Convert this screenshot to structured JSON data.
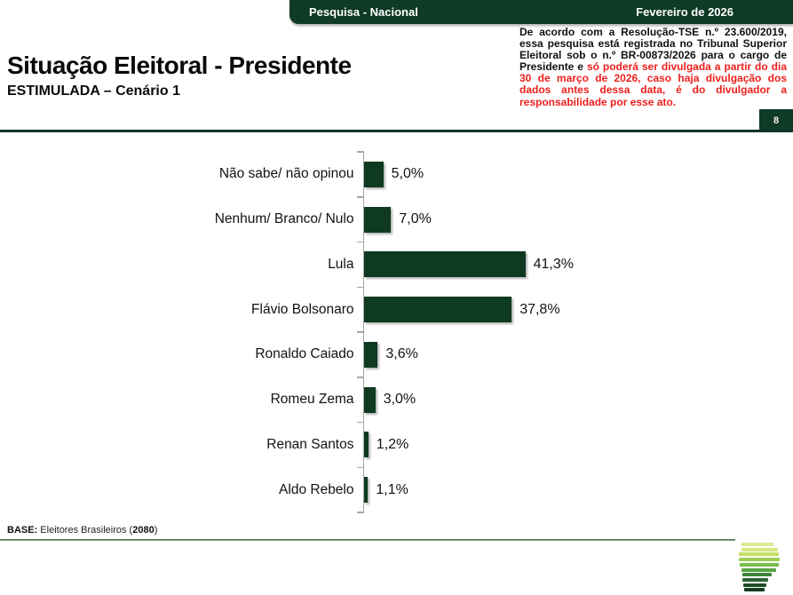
{
  "header": {
    "left_label": "Pesquisa - Nacional",
    "right_label": "Fevereiro de 2026"
  },
  "title": "Situação Eleitoral - Presidente",
  "subtitle": "ESTIMULADA – Cenário 1",
  "disclaimer": {
    "black_text": "De acordo com a Resolução-TSE n.º 23.600/2019, essa pesquisa está registrada no Tribunal Superior Eleitoral sob o n.º BR-00873/2026 para o cargo de Presidente e ",
    "red_text": "só poderá ser divulgada a partir do dia 30 de março de 2026, caso haja divulgação dos dados antes dessa data, é do divulgador a responsabilidade por esse ato."
  },
  "page_number": "8",
  "chart_data": {
    "type": "bar",
    "orientation": "horizontal",
    "title": "",
    "xlabel": "",
    "ylabel": "",
    "grid": false,
    "legend": false,
    "xlim": [
      0,
      100
    ],
    "categories": [
      "Não sabe/ não opinou",
      "Nenhum/ Branco/ Nulo",
      "Lula",
      "Flávio Bolsonaro",
      "Ronaldo Caiado",
      "Romeu Zema",
      "Renan Santos",
      "Aldo Rebelo"
    ],
    "values": [
      5.0,
      7.0,
      41.3,
      37.8,
      3.6,
      3.0,
      1.2,
      1.1
    ],
    "value_labels": [
      "5,0%",
      "7,0%",
      "41,3%",
      "37,8%",
      "3,6%",
      "3,0%",
      "1,2%",
      "1,1%"
    ],
    "bar_color": "#0d3a20",
    "axis_color": "#a6a6a6"
  },
  "footer": {
    "base_prefix": "BASE:",
    "base_mid": " Eleitores Brasileiros (",
    "base_bold": "2080",
    "base_suffix": ")"
  },
  "colors": {
    "dark_green": "#0e3a26",
    "red_text": "#ee1f1c",
    "axis_gray": "#a6a6a6"
  },
  "logo": {
    "name": "striped-brand-logo",
    "stripe_colors": [
      "#dcea93",
      "#d7e77f",
      "#c6e065",
      "#9ed04f",
      "#79bc49",
      "#57a445",
      "#3f833d",
      "#2c6433",
      "#1e4b28",
      "#143c20"
    ]
  }
}
